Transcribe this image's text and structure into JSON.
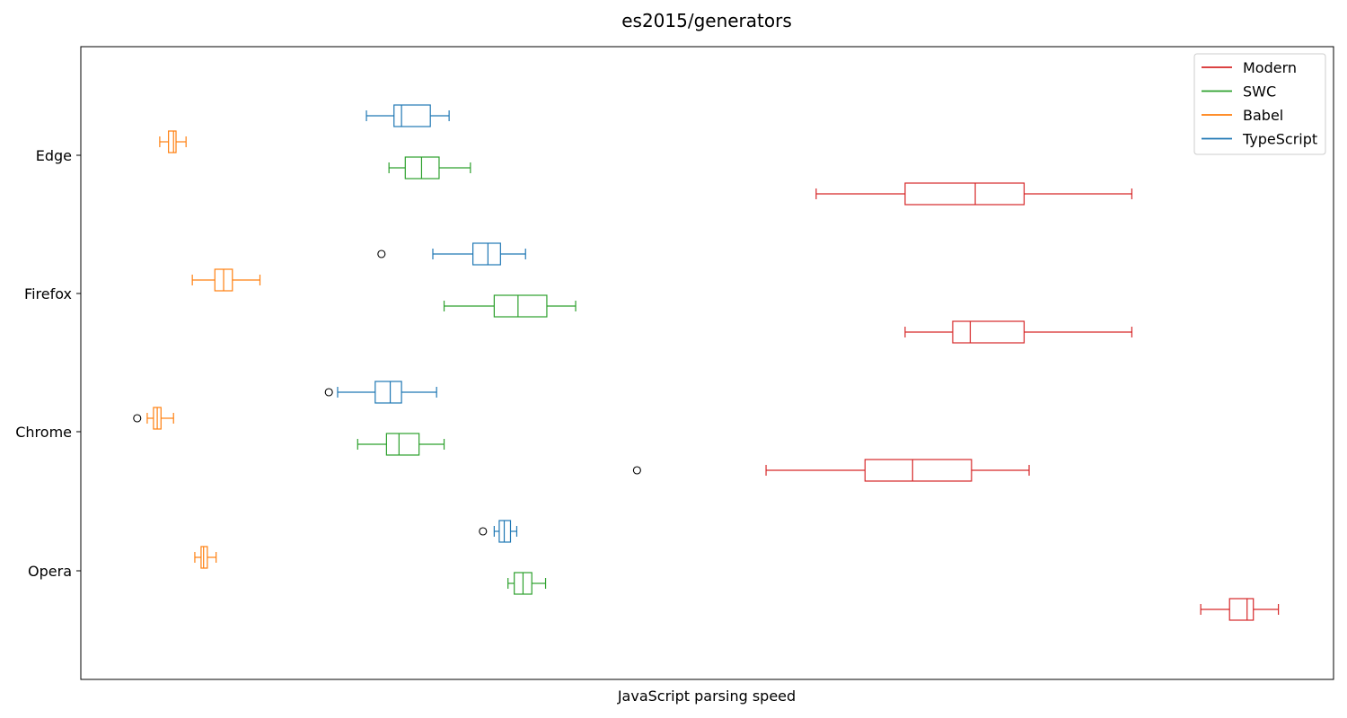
{
  "chart_data": {
    "type": "boxplot",
    "orientation": "horizontal",
    "title": "es2015/generators",
    "xlabel": "JavaScript parsing speed",
    "ylabel": "",
    "x_ticks_visible": false,
    "categories": [
      "Edge",
      "Firefox",
      "Chrome",
      "Opera"
    ],
    "xlim": [
      0,
      1000
    ],
    "grid": false,
    "legend": {
      "placement": "top-right",
      "entries": [
        "Modern",
        "SWC",
        "Babel",
        "TypeScript"
      ]
    },
    "series": [
      {
        "name": "TypeScript",
        "color": "#1f77b4",
        "boxes": [
          {
            "category": "Edge",
            "whisker_low": 228,
            "q1": 250,
            "median": 256,
            "q3": 279,
            "whisker_high": 294,
            "outliers": []
          },
          {
            "category": "Firefox",
            "whisker_low": 281,
            "q1": 313,
            "median": 325,
            "q3": 335,
            "whisker_high": 355,
            "outliers": [
              240
            ]
          },
          {
            "category": "Chrome",
            "whisker_low": 205,
            "q1": 235,
            "median": 247,
            "q3": 256,
            "whisker_high": 284,
            "outliers": [
              198
            ]
          },
          {
            "category": "Opera",
            "whisker_low": 330,
            "q1": 334,
            "median": 338,
            "q3": 343,
            "whisker_high": 348,
            "outliers": [
              321
            ]
          }
        ]
      },
      {
        "name": "Babel",
        "color": "#ff7f0e",
        "boxes": [
          {
            "category": "Edge",
            "whisker_low": 63,
            "q1": 70,
            "median": 74,
            "q3": 76,
            "whisker_high": 84,
            "outliers": []
          },
          {
            "category": "Firefox",
            "whisker_low": 89,
            "q1": 107,
            "median": 114,
            "q3": 121,
            "whisker_high": 143,
            "outliers": []
          },
          {
            "category": "Chrome",
            "whisker_low": 53,
            "q1": 58,
            "median": 61,
            "q3": 64,
            "whisker_high": 74,
            "outliers": [
              45
            ]
          },
          {
            "category": "Opera",
            "whisker_low": 91,
            "q1": 96,
            "median": 98,
            "q3": 101,
            "whisker_high": 108,
            "outliers": []
          }
        ]
      },
      {
        "name": "SWC",
        "color": "#2ca02c",
        "boxes": [
          {
            "category": "Edge",
            "whisker_low": 246,
            "q1": 259,
            "median": 272,
            "q3": 286,
            "whisker_high": 311,
            "outliers": []
          },
          {
            "category": "Firefox",
            "whisker_low": 290,
            "q1": 330,
            "median": 349,
            "q3": 372,
            "whisker_high": 395,
            "outliers": []
          },
          {
            "category": "Chrome",
            "whisker_low": 221,
            "q1": 244,
            "median": 254,
            "q3": 270,
            "whisker_high": 290,
            "outliers": []
          },
          {
            "category": "Opera",
            "whisker_low": 341,
            "q1": 346,
            "median": 353,
            "q3": 360,
            "whisker_high": 371,
            "outliers": []
          }
        ]
      },
      {
        "name": "Modern",
        "color": "#d62728",
        "boxes": [
          {
            "category": "Edge",
            "whisker_low": 587,
            "q1": 658,
            "median": 714,
            "q3": 753,
            "whisker_high": 839,
            "outliers": []
          },
          {
            "category": "Firefox",
            "whisker_low": 658,
            "q1": 696,
            "median": 710,
            "q3": 753,
            "whisker_high": 839,
            "outliers": []
          },
          {
            "category": "Chrome",
            "whisker_low": 547,
            "q1": 626,
            "median": 664,
            "q3": 711,
            "whisker_high": 757,
            "outliers": [
              444
            ]
          },
          {
            "category": "Opera",
            "whisker_low": 894,
            "q1": 917,
            "median": 931,
            "q3": 936,
            "whisker_high": 956,
            "outliers": []
          }
        ]
      }
    ]
  }
}
